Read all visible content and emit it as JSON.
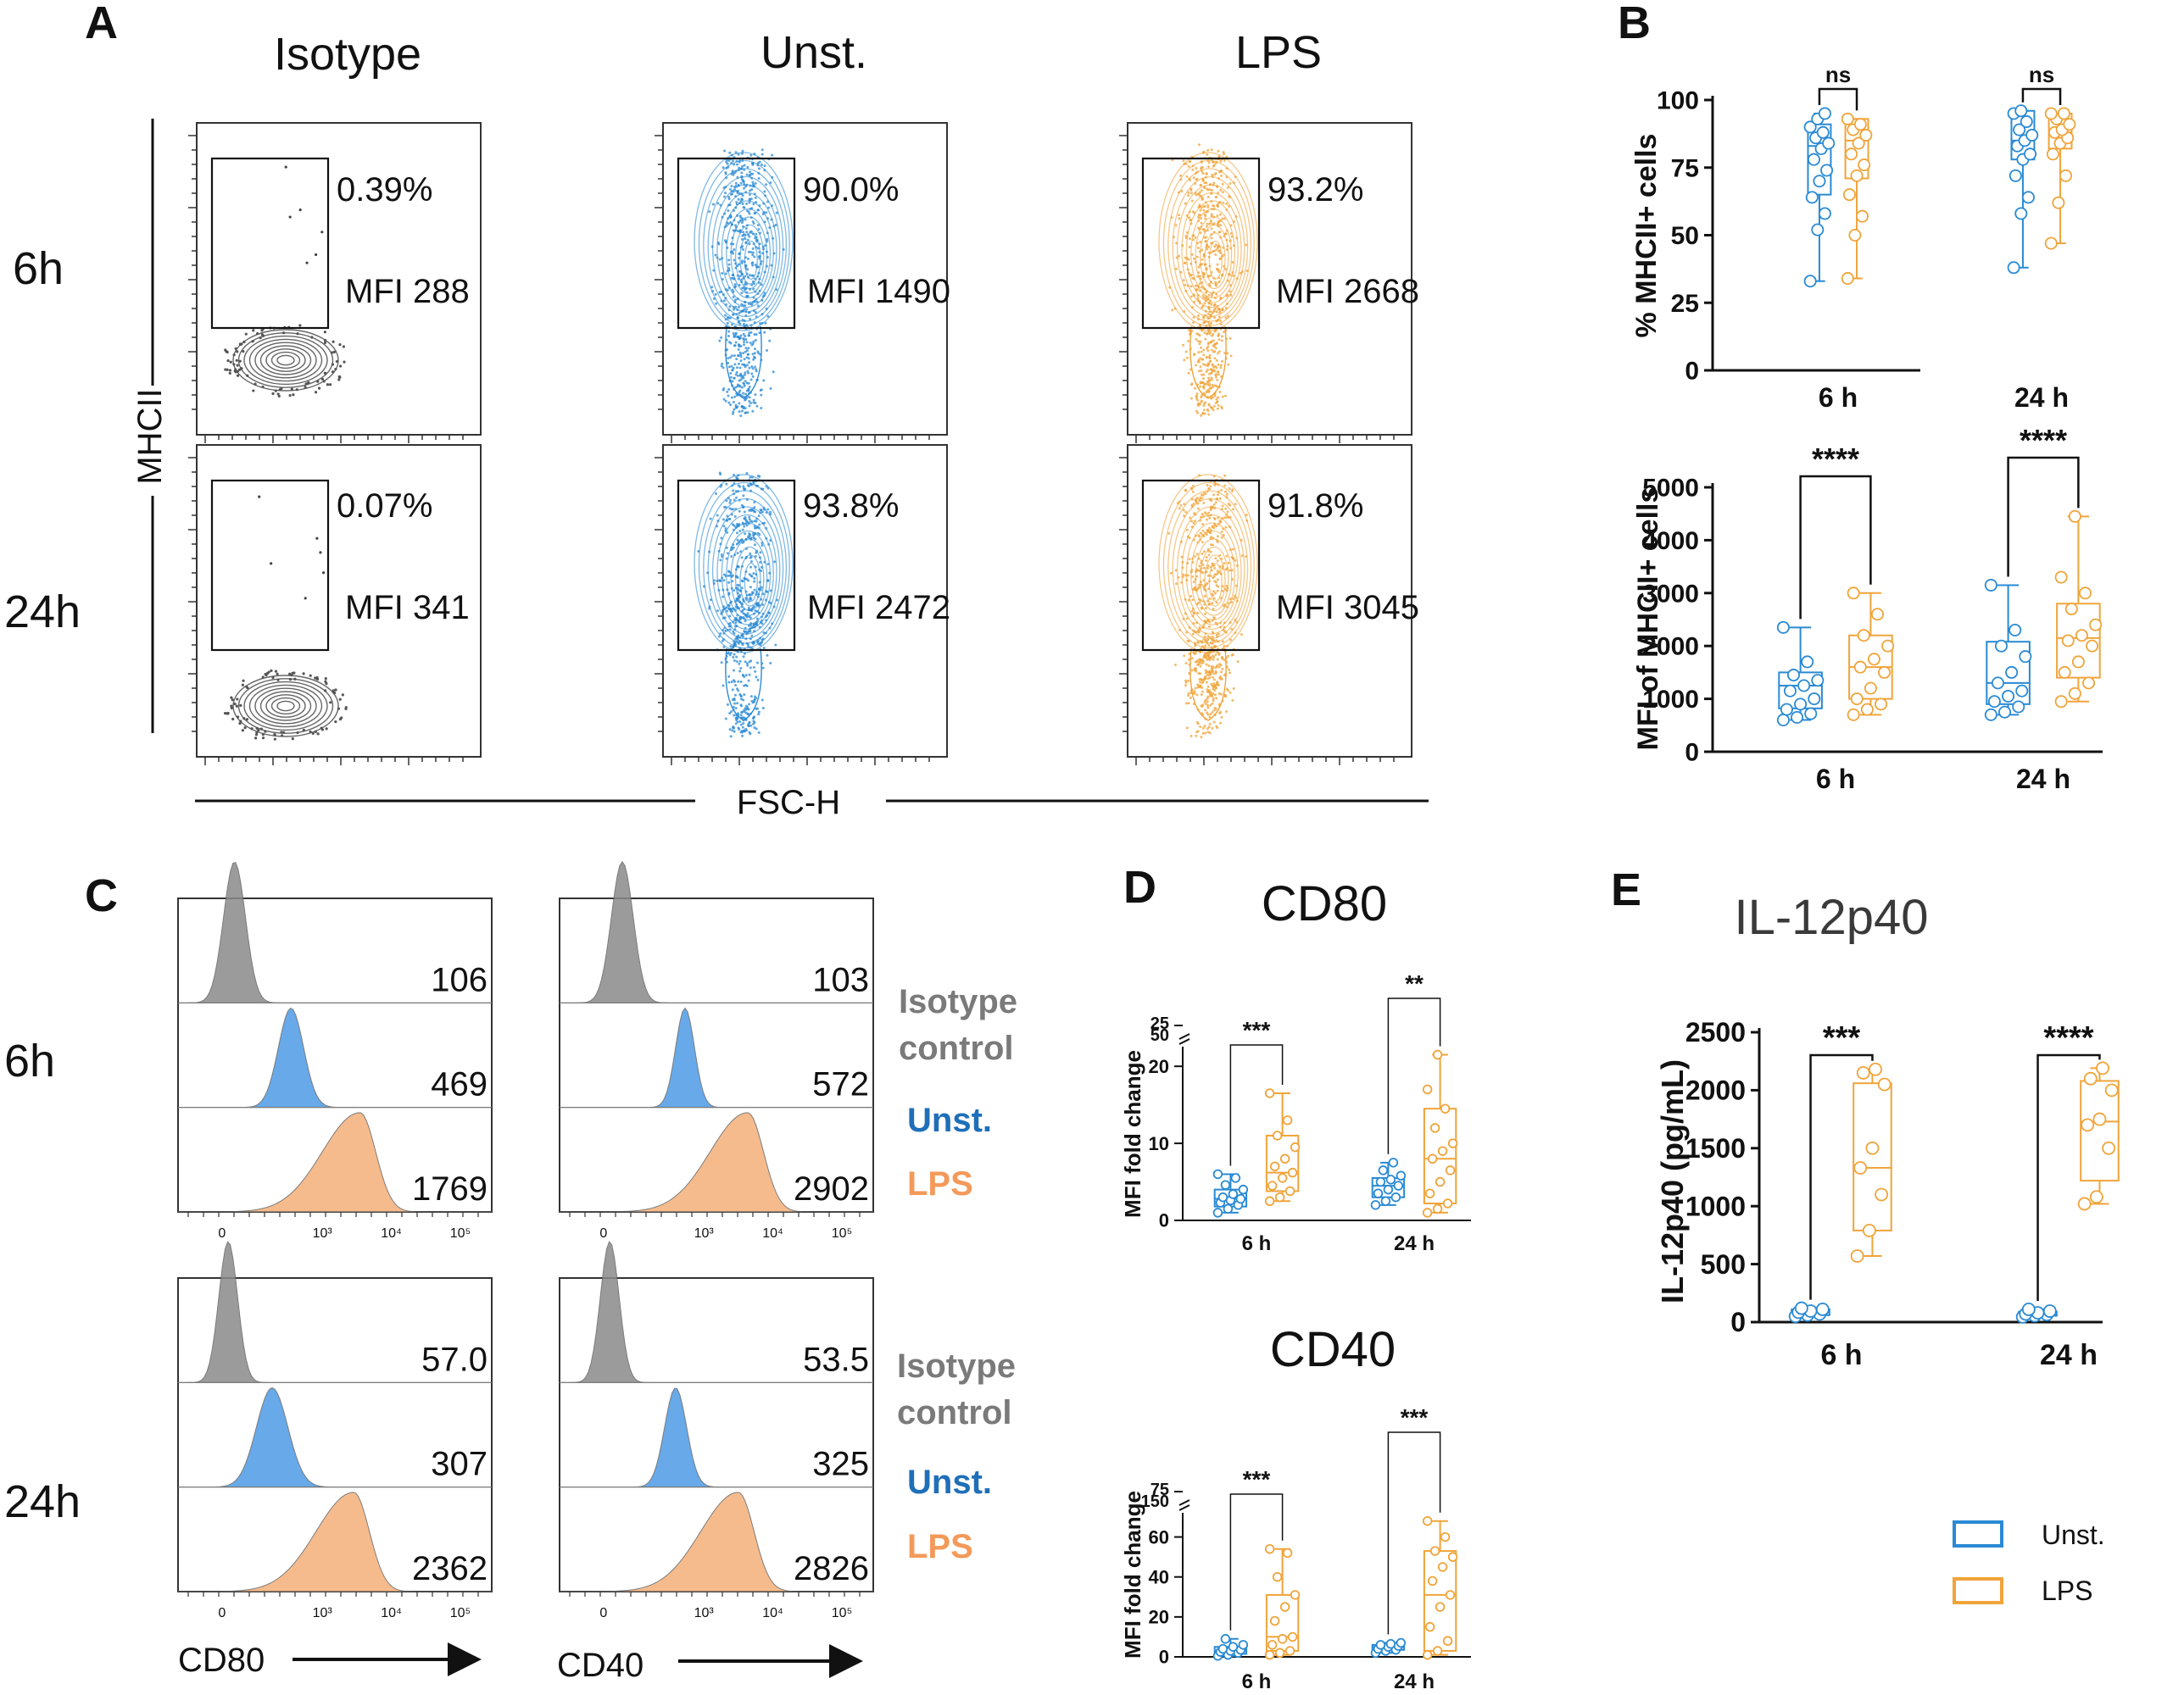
{
  "colors": {
    "unst": "#2a8ad4",
    "lps": "#f0a43a",
    "iso": "#555555",
    "unst_text": "#1f6fb8",
    "lps_text": "#f39a5a",
    "iso_text": "#7a7a7a",
    "ink": "#111111"
  },
  "panels": {
    "A": "A",
    "B": "B",
    "C": "C",
    "D": "D",
    "E": "E"
  },
  "panelA": {
    "columns": [
      "Isotype",
      "Unst.",
      "LPS"
    ],
    "rows": [
      "6h",
      "24h"
    ],
    "y_axis": "MHCII",
    "x_axis": "FSC-H",
    "plots": [
      [
        {
          "pct": "0.39%",
          "mfi": "MFI 288"
        },
        {
          "pct": "90.0%",
          "mfi": "MFI 1490"
        },
        {
          "pct": "93.2%",
          "mfi": "MFI 2668"
        }
      ],
      [
        {
          "pct": "0.07%",
          "mfi": "MFI 341"
        },
        {
          "pct": "93.8%",
          "mfi": "MFI 2472"
        },
        {
          "pct": "91.8%",
          "mfi": "MFI 3045"
        }
      ]
    ]
  },
  "panelC": {
    "rows": [
      "6h",
      "24h"
    ],
    "markers": [
      "CD80",
      "CD40"
    ],
    "values": [
      [
        [
          "106",
          "469",
          "1769"
        ],
        [
          "103",
          "572",
          "2902"
        ]
      ],
      [
        [
          "57.0",
          "307",
          "2362"
        ],
        [
          "53.5",
          "325",
          "2826"
        ]
      ]
    ],
    "legend": {
      "iso_line1": "Isotype",
      "iso_line2": "control",
      "unst": "Unst.",
      "lps": "LPS"
    },
    "tick_labels": [
      "0",
      "10³",
      "10⁴",
      "10⁵"
    ]
  },
  "legend": {
    "unst": "Unst.",
    "lps": "LPS"
  },
  "chart_data": [
    {
      "id": "B-top",
      "type": "box",
      "ylabel": "% MHCII+ cells",
      "ylim": [
        0,
        100
      ],
      "yticks": [
        "0",
        "25",
        "50",
        "75",
        "100"
      ],
      "categories": [
        "6 h",
        "24 h"
      ],
      "series": [
        {
          "name": "Unst.",
          "boxes": [
            {
              "min": 33,
              "q1": 65,
              "median": 83,
              "q3": 91,
              "max": 95
            },
            {
              "min": 38,
              "q1": 78,
              "median": 85,
              "q3": 96,
              "max": 96
            }
          ]
        },
        {
          "name": "LPS",
          "boxes": [
            {
              "min": 34,
              "q1": 71,
              "median": 85,
              "q3": 93,
              "max": 93
            },
            {
              "min": 47,
              "q1": 82,
              "median": 88,
              "q3": 95,
              "max": 95
            }
          ]
        }
      ],
      "points": {
        "Unst.": [
          [
            33,
            52,
            58,
            64,
            70,
            74,
            78,
            82,
            84,
            86,
            88,
            90,
            93,
            95
          ],
          [
            38,
            58,
            64,
            72,
            78,
            80,
            83,
            85,
            87,
            89,
            92,
            95,
            96
          ]
        ],
        "LPS": [
          [
            34,
            50,
            57,
            65,
            72,
            76,
            80,
            84,
            87,
            89,
            91,
            93
          ],
          [
            47,
            62,
            72,
            80,
            84,
            86,
            88,
            89,
            91,
            93,
            95,
            95
          ]
        ]
      },
      "significance": [
        "ns",
        "ns"
      ]
    },
    {
      "id": "B-bottom",
      "type": "box",
      "ylabel": "MFI of MHCII+ cells",
      "ylim": [
        0,
        5000
      ],
      "yticks": [
        "0",
        "1000",
        "2000",
        "3000",
        "4000",
        "5000"
      ],
      "categories": [
        "6 h",
        "24 h"
      ],
      "series": [
        {
          "name": "Unst.",
          "boxes": [
            {
              "min": 600,
              "q1": 820,
              "median": 1250,
              "q3": 1500,
              "max": 2350
            },
            {
              "min": 700,
              "q1": 900,
              "median": 1300,
              "q3": 2080,
              "max": 3150
            }
          ]
        },
        {
          "name": "LPS",
          "boxes": [
            {
              "min": 700,
              "q1": 1000,
              "median": 1600,
              "q3": 2200,
              "max": 3000
            },
            {
              "min": 950,
              "q1": 1400,
              "median": 2150,
              "q3": 2800,
              "max": 4450
            }
          ]
        }
      ],
      "points": {
        "Unst.": [
          [
            600,
            650,
            720,
            800,
            900,
            1000,
            1150,
            1250,
            1350,
            1450,
            1700,
            2350
          ],
          [
            700,
            750,
            850,
            950,
            1050,
            1150,
            1300,
            1500,
            1800,
            2000,
            2300,
            3150
          ]
        ],
        "LPS": [
          [
            700,
            800,
            900,
            1000,
            1200,
            1500,
            1600,
            1750,
            2000,
            2200,
            2600,
            3000
          ],
          [
            950,
            1100,
            1300,
            1500,
            1700,
            2000,
            2100,
            2200,
            2400,
            2700,
            3000,
            3300,
            4450
          ]
        ]
      },
      "significance": [
        "****",
        "****"
      ]
    },
    {
      "id": "D-top",
      "type": "box",
      "title": "CD80",
      "ylabel": "MFI fold change",
      "ylim": [
        0,
        22
      ],
      "yticks": [
        "0",
        "10",
        "20"
      ],
      "break_ticks": [
        "25",
        "50"
      ],
      "categories": [
        "6 h",
        "24 h"
      ],
      "series": [
        {
          "name": "Unst.",
          "boxes": [
            {
              "min": 1,
              "q1": 1.8,
              "median": 2.8,
              "q3": 4,
              "max": 6
            },
            {
              "min": 2,
              "q1": 3,
              "median": 4.5,
              "q3": 5.5,
              "max": 7.5
            }
          ]
        },
        {
          "name": "LPS",
          "boxes": [
            {
              "min": 2.5,
              "q1": 3.8,
              "median": 6.2,
              "q3": 11,
              "max": 16.5
            },
            {
              "min": 1,
              "q1": 2.2,
              "median": 8,
              "q3": 14.5,
              "max": 21.5
            }
          ]
        }
      ],
      "points": {
        "Unst.": [
          [
            1,
            1.5,
            2,
            2.3,
            2.6,
            2.8,
            3,
            3.4,
            4,
            4.6,
            5.5,
            6
          ],
          [
            2,
            2.5,
            3,
            3.5,
            4,
            4.5,
            5,
            5.3,
            5.8,
            6.5,
            7.5
          ]
        ],
        "LPS": [
          [
            2.5,
            3,
            3.8,
            4.5,
            5.5,
            6.2,
            7,
            8,
            9.5,
            11,
            13,
            16.5
          ],
          [
            1,
            1.5,
            2.2,
            3.5,
            5,
            6.5,
            8,
            9,
            10,
            12,
            14.5,
            17,
            21.5
          ]
        ]
      },
      "significance": [
        "***",
        "**"
      ]
    },
    {
      "id": "D-bottom",
      "type": "box",
      "title": "CD40",
      "ylabel": "MFI fold change",
      "ylim": [
        0,
        70
      ],
      "yticks": [
        "0",
        "20",
        "40",
        "60"
      ],
      "break_ticks": [
        "75",
        "150"
      ],
      "categories": [
        "6 h",
        "24 h"
      ],
      "series": [
        {
          "name": "Unst.",
          "boxes": [
            {
              "min": 0.5,
              "q1": 1.5,
              "median": 3,
              "q3": 5,
              "max": 9
            },
            {
              "min": 2,
              "q1": 3.5,
              "median": 5,
              "q3": 6,
              "max": 7
            }
          ]
        },
        {
          "name": "LPS",
          "boxes": [
            {
              "min": 1,
              "q1": 3,
              "median": 10,
              "q3": 31,
              "max": 54
            },
            {
              "min": 1,
              "q1": 3,
              "median": 31,
              "q3": 53,
              "max": 68
            }
          ]
        }
      ],
      "points": {
        "Unst.": [
          [
            0.5,
            1,
            2,
            2.5,
            3,
            3.5,
            4,
            5,
            6,
            9
          ],
          [
            2,
            3,
            3.5,
            4,
            5,
            5.5,
            6,
            6.5,
            7
          ]
        ],
        "LPS": [
          [
            1,
            2,
            3,
            6,
            9,
            10,
            18,
            25,
            31,
            40,
            52,
            54
          ],
          [
            1,
            3,
            8,
            15,
            25,
            31,
            38,
            45,
            50,
            53,
            60,
            68
          ]
        ]
      },
      "significance": [
        "***",
        "***"
      ]
    },
    {
      "id": "E",
      "type": "box",
      "title": "IL-12p40",
      "ylabel": "IL-12p40 (pg/mL)",
      "ylim": [
        0,
        2500
      ],
      "yticks": [
        "0",
        "500",
        "1000",
        "1500",
        "2000",
        "2500"
      ],
      "categories": [
        "6 h",
        "24 h"
      ],
      "series": [
        {
          "name": "Unst.",
          "boxes": [
            {
              "min": 50,
              "q1": 60,
              "median": 85,
              "q3": 110,
              "max": 120
            },
            {
              "min": 45,
              "q1": 55,
              "median": 70,
              "q3": 90,
              "max": 110
            }
          ]
        },
        {
          "name": "LPS",
          "boxes": [
            {
              "min": 570,
              "q1": 790,
              "median": 1330,
              "q3": 2060,
              "max": 2180
            },
            {
              "min": 1020,
              "q1": 1220,
              "median": 1730,
              "q3": 2080,
              "max": 2190
            }
          ]
        }
      ],
      "points": {
        "Unst.": [
          [
            50,
            60,
            70,
            85,
            95,
            110,
            120
          ],
          [
            45,
            55,
            65,
            70,
            80,
            95,
            110
          ]
        ],
        "LPS": [
          [
            570,
            790,
            1100,
            1330,
            1500,
            2050,
            2150,
            2180
          ],
          [
            1020,
            1080,
            1500,
            1700,
            1750,
            2000,
            2100,
            2190
          ]
        ]
      },
      "significance": [
        "***",
        "****"
      ]
    }
  ]
}
